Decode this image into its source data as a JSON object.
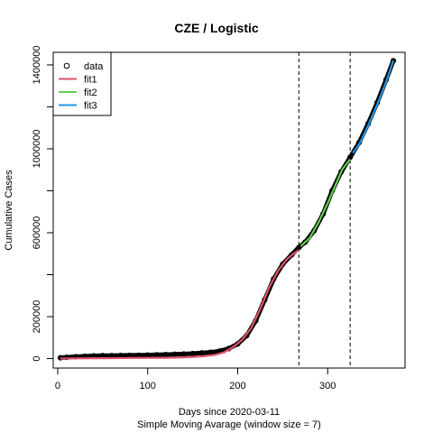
{
  "chart_data": {
    "type": "line",
    "title": "CZE / Logistic",
    "xlabel": "Days since 2020-03-11",
    "subtitle": "Simple Moving Avarage (window size = 7)",
    "ylabel": "Cumulative Cases",
    "xlim": [
      -5,
      386
    ],
    "ylim": [
      -45000,
      1460000
    ],
    "x_ticks": [
      0,
      100,
      200,
      300
    ],
    "y_ticks": [
      0,
      200000,
      600000,
      1000000,
      1400000
    ],
    "y_minor_ticks": [
      400000,
      800000,
      1200000
    ],
    "vlines": [
      268,
      325
    ],
    "legend": {
      "position": "top-left",
      "entries": [
        {
          "label": "data",
          "type": "point",
          "color": "#000000"
        },
        {
          "label": "fit1",
          "type": "line",
          "color": "#DF536B"
        },
        {
          "label": "fit2",
          "type": "line",
          "color": "#61D04F"
        },
        {
          "label": "fit3",
          "type": "line",
          "color": "#2297E6"
        }
      ]
    },
    "series": [
      {
        "label": "data",
        "color": "#000000",
        "points": [
          [
            3,
            4000
          ],
          [
            10,
            6000
          ],
          [
            20,
            9000
          ],
          [
            30,
            11000
          ],
          [
            40,
            13000
          ],
          [
            50,
            14000
          ],
          [
            60,
            14500
          ],
          [
            70,
            15000
          ],
          [
            80,
            15500
          ],
          [
            90,
            16000
          ],
          [
            100,
            17000
          ],
          [
            110,
            18000
          ],
          [
            120,
            19000
          ],
          [
            130,
            20500
          ],
          [
            140,
            22000
          ],
          [
            150,
            24000
          ],
          [
            160,
            27000
          ],
          [
            170,
            30000
          ],
          [
            180,
            36000
          ],
          [
            190,
            48000
          ],
          [
            200,
            70000
          ],
          [
            210,
            110000
          ],
          [
            220,
            180000
          ],
          [
            230,
            280000
          ],
          [
            240,
            380000
          ],
          [
            250,
            450000
          ],
          [
            260,
            495000
          ],
          [
            268,
            530000
          ],
          [
            275,
            555000
          ],
          [
            285,
            610000
          ],
          [
            295,
            690000
          ],
          [
            305,
            800000
          ],
          [
            315,
            890000
          ],
          [
            325,
            960000
          ],
          [
            335,
            1030000
          ],
          [
            345,
            1120000
          ],
          [
            355,
            1220000
          ],
          [
            365,
            1330000
          ],
          [
            373,
            1420000
          ]
        ]
      },
      {
        "label": "fit1",
        "color": "#DF536B",
        "points": [
          [
            3,
            0
          ],
          [
            20,
            1000
          ],
          [
            40,
            2000
          ],
          [
            60,
            2500
          ],
          [
            80,
            3000
          ],
          [
            100,
            3500
          ],
          [
            120,
            4000
          ],
          [
            140,
            6000
          ],
          [
            160,
            10000
          ],
          [
            175,
            18000
          ],
          [
            185,
            30000
          ],
          [
            195,
            55000
          ],
          [
            205,
            90000
          ],
          [
            215,
            145000
          ],
          [
            225,
            235000
          ],
          [
            235,
            340000
          ],
          [
            245,
            420000
          ],
          [
            255,
            475000
          ],
          [
            262,
            500000
          ],
          [
            268,
            518000
          ]
        ]
      },
      {
        "label": "fit2",
        "color": "#61D04F",
        "points": [
          [
            270,
            535000
          ],
          [
            280,
            575000
          ],
          [
            290,
            650000
          ],
          [
            300,
            740000
          ],
          [
            308,
            820000
          ],
          [
            316,
            900000
          ],
          [
            325,
            950000
          ]
        ]
      },
      {
        "label": "fit3",
        "color": "#2297E6",
        "points": [
          [
            328,
            980000
          ],
          [
            335,
            1020000
          ],
          [
            345,
            1110000
          ],
          [
            355,
            1210000
          ],
          [
            365,
            1320000
          ],
          [
            373,
            1420000
          ]
        ]
      }
    ]
  }
}
